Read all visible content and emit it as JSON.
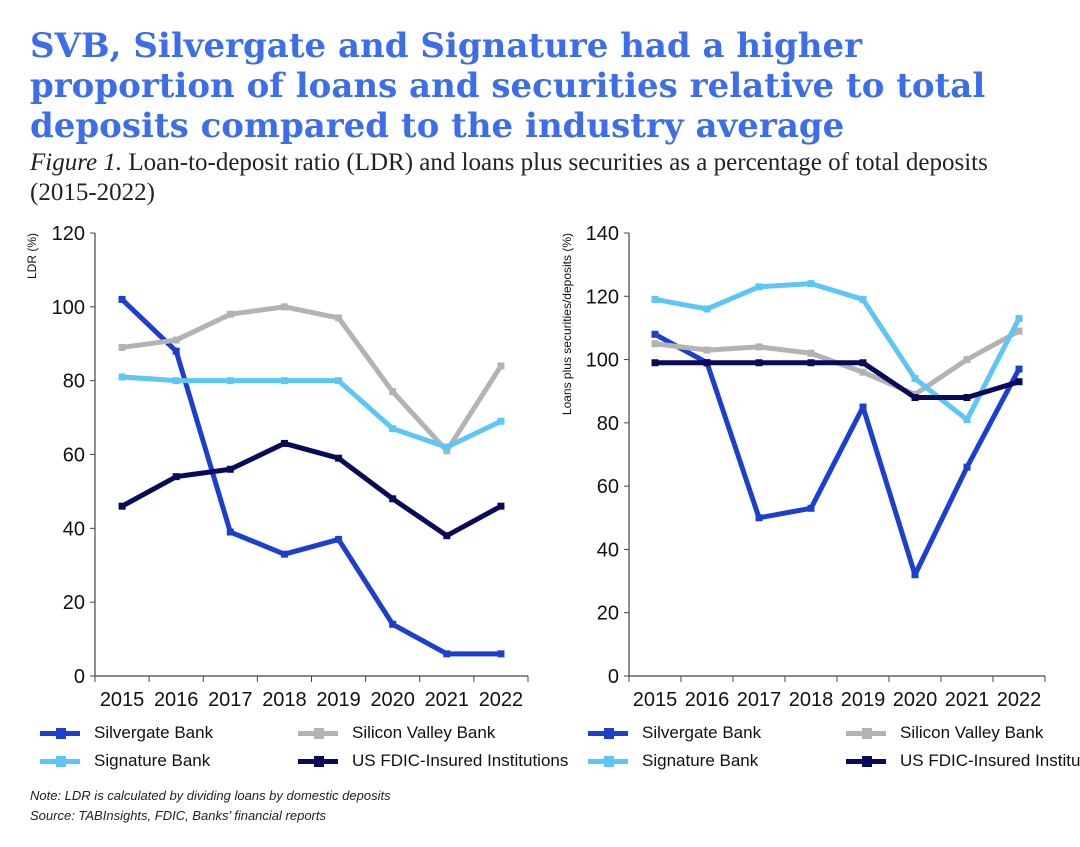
{
  "title": "SVB, Silvergate and Signature had a higher proportion of loans and securities relative to total deposits compared to the industry average",
  "subtitle_prefix": "Figure 1.",
  "subtitle": "Loan-to-deposit ratio (LDR) and loans plus securities as a percentage of total deposits (2015-2022)",
  "colors": {
    "silvergate": "#1a3fd1",
    "svb": "#b3b3b3",
    "signature": "#5cc6f5",
    "fdic": "#0a0a5a",
    "title": "#3b6ee8"
  },
  "notes": {
    "note": "Note: LDR is calculated by dividing loans by domestic deposits",
    "source": "Source: TABInsights, FDIC, Banks’ financial reports"
  },
  "chart_data": [
    {
      "type": "line",
      "ylabel": "LDR (%)",
      "xlabel": "",
      "ylim": [
        0,
        120
      ],
      "yticks": [
        0,
        20,
        40,
        60,
        80,
        100,
        120
      ],
      "x": [
        "2015",
        "2016",
        "2017",
        "2018",
        "2019",
        "2020",
        "2021",
        "2022"
      ],
      "grid": false,
      "legend_position": "bottom",
      "series": [
        {
          "name": "Silvergate Bank",
          "color_key": "silvergate",
          "values": [
            102,
            88,
            39,
            33,
            37,
            14,
            6,
            6
          ]
        },
        {
          "name": "Silicon Valley Bank",
          "color_key": "svb",
          "values": [
            89,
            91,
            98,
            100,
            97,
            77,
            61,
            84
          ]
        },
        {
          "name": "Signature Bank",
          "color_key": "signature",
          "values": [
            81,
            80,
            80,
            80,
            80,
            67,
            62,
            69
          ]
        },
        {
          "name": "US FDIC-Insured Institutions",
          "color_key": "fdic",
          "values": [
            46,
            54,
            56,
            63,
            59,
            48,
            38,
            46
          ]
        }
      ]
    },
    {
      "type": "line",
      "ylabel": "Loans plus securities/deposits (%)",
      "xlabel": "",
      "ylim": [
        0,
        140
      ],
      "yticks": [
        0,
        20,
        40,
        60,
        80,
        100,
        120,
        140
      ],
      "x": [
        "2015",
        "2016",
        "2017",
        "2018",
        "2019",
        "2020",
        "2021",
        "2022"
      ],
      "grid": false,
      "legend_position": "bottom",
      "series": [
        {
          "name": "Silvergate Bank",
          "color_key": "silvergate",
          "values": [
            108,
            99,
            50,
            53,
            85,
            32,
            66,
            97
          ]
        },
        {
          "name": "Silicon Valley Bank",
          "color_key": "svb",
          "values": [
            105,
            103,
            104,
            102,
            96,
            89,
            100,
            109
          ]
        },
        {
          "name": "Signature Bank",
          "color_key": "signature",
          "values": [
            119,
            116,
            123,
            124,
            119,
            94,
            81,
            113
          ]
        },
        {
          "name": "US FDIC-Insured Institutions",
          "color_key": "fdic",
          "values": [
            99,
            99,
            99,
            99,
            99,
            88,
            88,
            93
          ]
        }
      ]
    }
  ]
}
